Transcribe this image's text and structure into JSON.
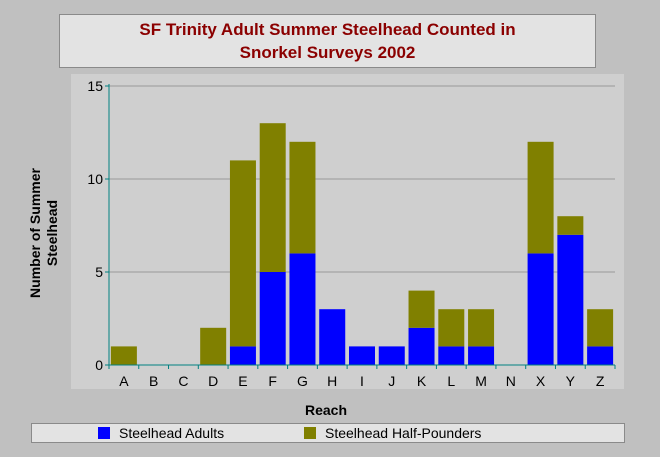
{
  "title": {
    "line1": "SF Trinity Adult Summer Steelhead Counted in",
    "line2": "Snorkel Surveys 2002"
  },
  "colors": {
    "adults": "#0000ff",
    "half_pounders": "#808000",
    "grid": "#9a9a9a",
    "axis": "#008080"
  },
  "chart_data": {
    "type": "bar",
    "stacked": true,
    "title": "SF Trinity Adult Summer Steelhead Counted in Snorkel Surveys 2002",
    "xlabel": "Reach",
    "ylabel": "Number of Summer Steelhead",
    "ylim": [
      0,
      15
    ],
    "yticks": [
      0,
      5,
      10,
      15
    ],
    "grid": true,
    "legend_position": "bottom",
    "categories": [
      "A",
      "B",
      "C",
      "D",
      "E",
      "F",
      "G",
      "H",
      "I",
      "J",
      "K",
      "L",
      "M",
      "N",
      "X",
      "Y",
      "Z"
    ],
    "series": [
      {
        "name": "Steelhead Adults",
        "values": [
          0,
          0,
          0,
          0,
          1,
          5,
          6,
          3,
          1,
          1,
          2,
          1,
          1,
          0,
          6,
          7,
          1
        ]
      },
      {
        "name": "Steelhead Half-Pounders",
        "values": [
          1,
          0,
          0,
          2,
          10,
          8,
          6,
          0,
          0,
          0,
          2,
          2,
          2,
          0,
          6,
          1,
          2
        ]
      }
    ]
  }
}
